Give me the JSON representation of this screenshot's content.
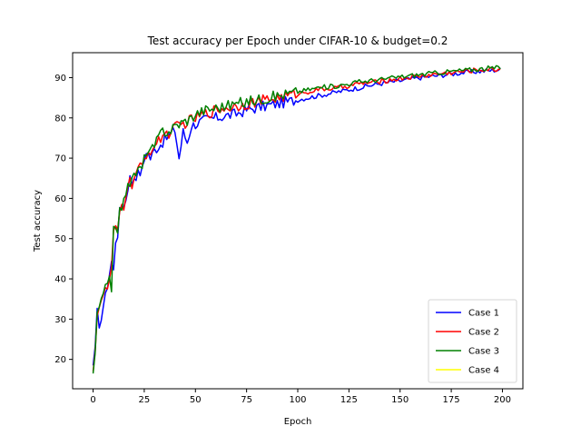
{
  "chart_data": {
    "type": "line",
    "title": "Test accuracy per Epoch under CIFAR-10 & budget=0.2",
    "xlabel": "Epoch",
    "ylabel": "Test accuracy",
    "xlim": [
      -10,
      210
    ],
    "ylim": [
      12.7,
      96.2
    ],
    "xticks": [
      0,
      25,
      50,
      75,
      100,
      125,
      150,
      175,
      200
    ],
    "yticks": [
      20,
      30,
      40,
      50,
      60,
      70,
      80,
      90
    ],
    "grid": false,
    "legend_position": "lower-right",
    "anchor_epochs": [
      0,
      1,
      2,
      3,
      4,
      5,
      6,
      7,
      8,
      9,
      10,
      11,
      12,
      13,
      14,
      15,
      16,
      17,
      18,
      19,
      20,
      22,
      24,
      26,
      28,
      30,
      32,
      34,
      36,
      38,
      40,
      42,
      44,
      46,
      48,
      50,
      55,
      60,
      65,
      70,
      75,
      80,
      85,
      90,
      95,
      100,
      110,
      120,
      130,
      140,
      150,
      160,
      170,
      180,
      190,
      199
    ],
    "series": [
      {
        "name": "Case 1",
        "color": "#0000ff",
        "values": [
          18.5,
          22,
          31.5,
          29,
          30,
          32,
          37.5,
          38,
          41,
          44,
          43,
          50,
          49,
          58,
          58.5,
          58,
          60,
          63,
          65,
          64,
          65.5,
          66,
          67,
          72,
          70,
          72,
          73,
          74,
          75,
          76,
          77,
          70,
          76.5,
          74,
          78,
          78.5,
          79.5,
          80,
          80.5,
          81,
          82,
          82.5,
          83,
          83.5,
          84,
          84.5,
          85.5,
          86.5,
          87.5,
          88.5,
          89.2,
          90,
          90.6,
          91.2,
          91.6,
          92
        ]
      },
      {
        "name": "Case 2",
        "color": "#ff0000",
        "values": [
          17,
          23,
          31,
          33.5,
          34.5,
          35,
          38,
          37,
          40,
          42,
          51,
          53,
          51,
          56.5,
          58,
          58,
          61,
          64,
          64,
          63.5,
          65,
          67,
          68,
          71,
          72,
          73,
          74,
          76,
          76,
          76.5,
          77.5,
          78,
          78.5,
          79,
          79.5,
          80,
          81,
          82,
          82.5,
          83,
          83.5,
          84,
          84.5,
          85,
          85.5,
          86,
          87,
          87.5,
          88.5,
          89,
          89.8,
          90.4,
          91,
          91.5,
          92,
          92
        ]
      },
      {
        "name": "Case 3",
        "color": "#008000",
        "values": [
          16.5,
          22,
          30.5,
          33,
          34.5,
          35.5,
          38,
          37.5,
          41,
          38,
          53,
          54,
          50,
          57,
          58,
          59,
          62,
          64.5,
          64,
          64,
          66,
          67,
          67.5,
          72,
          71.5,
          73,
          75,
          77,
          76.5,
          77,
          78,
          78.5,
          79,
          79.5,
          80,
          81,
          82,
          82.5,
          83,
          83.5,
          84,
          84.5,
          85,
          85.5,
          86,
          86.5,
          87.5,
          88,
          89,
          89.5,
          90.2,
          90.8,
          91.3,
          91.8,
          92.2,
          92.5
        ]
      },
      {
        "name": "Case 4",
        "color": "#ffff00",
        "values": []
      }
    ]
  }
}
